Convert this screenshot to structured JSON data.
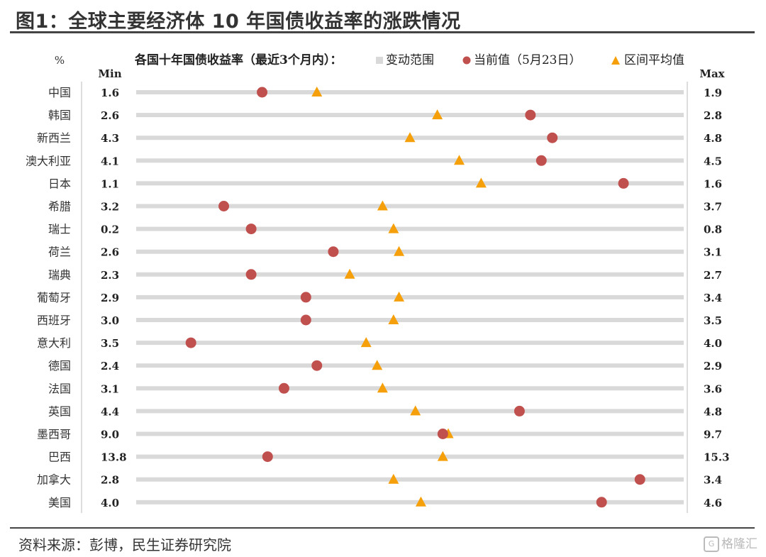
{
  "figure_title": "图1：全球主要经济体 10 年国债收益率的涨跌情况",
  "source": "资料来源：彭博，民生证券研究院",
  "watermark": "格隆汇",
  "colors": {
    "range_bar": "#d9d9d9",
    "current": "#c0504d",
    "average": "#f5a00a",
    "rule": "#444444"
  },
  "chart_data": {
    "type": "scatter",
    "title": "各国十年国债收益率（最近3个月内）：",
    "unit_label": "%",
    "min_header": "Min",
    "max_header": "Max",
    "legend_position": "top",
    "legend": [
      {
        "label": "变动范围",
        "marker": "square"
      },
      {
        "label": "当前值（5月23日）",
        "marker": "circle"
      },
      {
        "label": "区间平均值",
        "marker": "triangle"
      }
    ],
    "countries": [
      {
        "name": "中国",
        "min": "1.6",
        "max": "1.9",
        "current": 0.23,
        "average": 0.33
      },
      {
        "name": "韩国",
        "min": "2.6",
        "max": "2.8",
        "current": 0.72,
        "average": 0.55
      },
      {
        "name": "新西兰",
        "min": "4.3",
        "max": "4.8",
        "current": 0.76,
        "average": 0.5
      },
      {
        "name": "澳大利亚",
        "min": "4.1",
        "max": "4.5",
        "current": 0.74,
        "average": 0.59
      },
      {
        "name": "日本",
        "min": "1.1",
        "max": "1.6",
        "current": 0.89,
        "average": 0.63
      },
      {
        "name": "希腊",
        "min": "3.2",
        "max": "3.7",
        "current": 0.16,
        "average": 0.45
      },
      {
        "name": "瑞士",
        "min": "0.2",
        "max": "0.8",
        "current": 0.21,
        "average": 0.47
      },
      {
        "name": "荷兰",
        "min": "2.6",
        "max": "3.1",
        "current": 0.36,
        "average": 0.48
      },
      {
        "name": "瑞典",
        "min": "2.3",
        "max": "2.7",
        "current": 0.21,
        "average": 0.39
      },
      {
        "name": "葡萄牙",
        "min": "2.9",
        "max": "3.4",
        "current": 0.31,
        "average": 0.48
      },
      {
        "name": "西班牙",
        "min": "3.0",
        "max": "3.5",
        "current": 0.31,
        "average": 0.47
      },
      {
        "name": "意大利",
        "min": "3.5",
        "max": "4.0",
        "current": 0.1,
        "average": 0.42
      },
      {
        "name": "德国",
        "min": "2.4",
        "max": "2.9",
        "current": 0.33,
        "average": 0.44
      },
      {
        "name": "法国",
        "min": "3.1",
        "max": "3.6",
        "current": 0.27,
        "average": 0.45
      },
      {
        "name": "英国",
        "min": "4.4",
        "max": "4.8",
        "current": 0.7,
        "average": 0.51
      },
      {
        "name": "墨西哥",
        "min": "9.0",
        "max": "9.7",
        "current": 0.56,
        "average": 0.57
      },
      {
        "name": "巴西",
        "min": "13.8",
        "max": "15.3",
        "current": 0.24,
        "average": 0.56
      },
      {
        "name": "加拿大",
        "min": "2.8",
        "max": "3.4",
        "current": 0.92,
        "average": 0.47
      },
      {
        "name": "美国",
        "min": "4.0",
        "max": "4.6",
        "current": 0.85,
        "average": 0.52
      }
    ]
  }
}
